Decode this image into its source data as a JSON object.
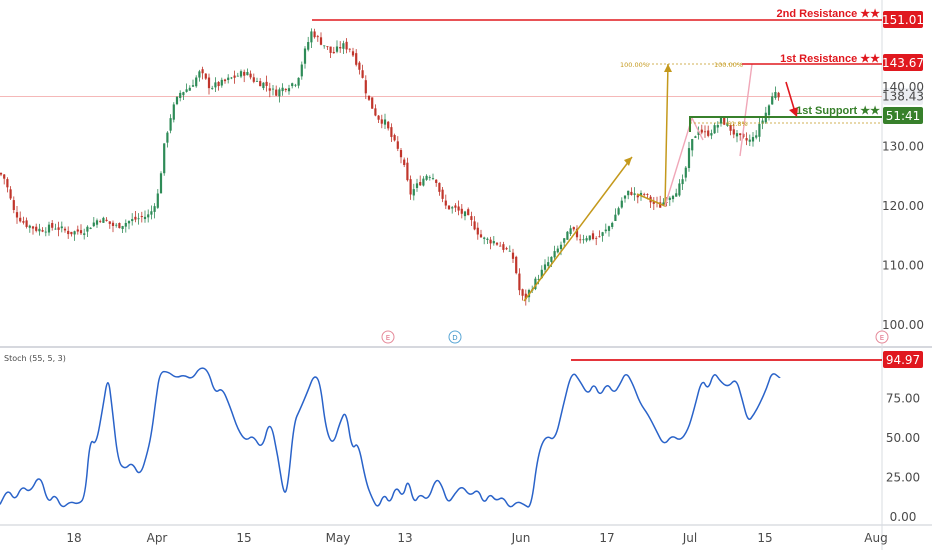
{
  "chart_data": [
    {
      "type": "candlestick",
      "ylim": [
        98,
        154
      ],
      "y_ticks": [
        "100.00",
        "110.00",
        "120.00",
        "130.00",
        "140.00"
      ],
      "x_ticks": [
        "18",
        "Apr",
        "15",
        "May",
        "13",
        "Jun",
        "17",
        "Jul",
        "15",
        "Aug"
      ],
      "close_path": [
        [
          0,
          125.5
        ],
        [
          5,
          124.5
        ],
        [
          14,
          119
        ],
        [
          25,
          117
        ],
        [
          38,
          116
        ],
        [
          55,
          116.5
        ],
        [
          70,
          115.5
        ],
        [
          85,
          116
        ],
        [
          100,
          118
        ],
        [
          115,
          116.5
        ],
        [
          130,
          117.5
        ],
        [
          150,
          118.5
        ],
        [
          158,
          122
        ],
        [
          165,
          131
        ],
        [
          172,
          136
        ],
        [
          180,
          139
        ],
        [
          190,
          140
        ],
        [
          200,
          142.5
        ],
        [
          210,
          140
        ],
        [
          220,
          140.5
        ],
        [
          232,
          141.5
        ],
        [
          245,
          142.5
        ],
        [
          255,
          141
        ],
        [
          265,
          140.5
        ],
        [
          275,
          139
        ],
        [
          285,
          140
        ],
        [
          297,
          141
        ],
        [
          305,
          146
        ],
        [
          312,
          149.5
        ],
        [
          318,
          148
        ],
        [
          325,
          147
        ],
        [
          332,
          145.5
        ],
        [
          342,
          147
        ],
        [
          350,
          146.5
        ],
        [
          360,
          143
        ],
        [
          368,
          138
        ],
        [
          377,
          135
        ],
        [
          385,
          134
        ],
        [
          393,
          131
        ],
        [
          402,
          128
        ],
        [
          410,
          122
        ],
        [
          420,
          124
        ],
        [
          428,
          125.5
        ],
        [
          436,
          124.5
        ],
        [
          444,
          120
        ],
        [
          455,
          119.5
        ],
        [
          465,
          118.5
        ],
        [
          473,
          117
        ],
        [
          482,
          114.5
        ],
        [
          495,
          114
        ],
        [
          507,
          112.5
        ],
        [
          514,
          111
        ],
        [
          519,
          106
        ],
        [
          524,
          104
        ],
        [
          530,
          106
        ],
        [
          538,
          108
        ],
        [
          546,
          110
        ],
        [
          555,
          112
        ],
        [
          563,
          114
        ],
        [
          571,
          116
        ],
        [
          580,
          114.5
        ],
        [
          588,
          115
        ],
        [
          597,
          114.5
        ],
        [
          607,
          116
        ],
        [
          614,
          118
        ],
        [
          622,
          121
        ],
        [
          630,
          122.5
        ],
        [
          637,
          121.5
        ],
        [
          645,
          122
        ],
        [
          652,
          120.5
        ],
        [
          660,
          120
        ],
        [
          668,
          121.5
        ],
        [
          675,
          122.5
        ],
        [
          683,
          124
        ],
        [
          690,
          130
        ],
        [
          698,
          133
        ],
        [
          706,
          132
        ],
        [
          714,
          133
        ],
        [
          722,
          134.5
        ],
        [
          730,
          133
        ],
        [
          738,
          131.5
        ],
        [
          745,
          131
        ],
        [
          752,
          131
        ],
        [
          760,
          133.5
        ],
        [
          768,
          136.5
        ],
        [
          775,
          139.5
        ],
        [
          781,
          138.4
        ]
      ],
      "levels": [
        {
          "name": "2nd Resistance ★★",
          "value": "151.01",
          "color": "#e0181f"
        },
        {
          "name": "1st Resistance ★★",
          "value": "143.67",
          "color": "#e0181f"
        },
        {
          "name": "1st Support ★★",
          "value": "51:41",
          "color": "#37802b"
        }
      ],
      "current_price": "138.43",
      "current_price_value": 138.43,
      "fib_labels": [
        "100.00%",
        "100.00%",
        "61.8%"
      ],
      "event_markers": [
        "E",
        "D",
        "E"
      ]
    },
    {
      "type": "line",
      "title": "Stoch (55, 5, 3)",
      "ylim": [
        0,
        100
      ],
      "y_ticks": [
        "0.00",
        "25.00",
        "50.00",
        "75.00"
      ],
      "level": {
        "value": "94.97",
        "color": "#e0181f"
      },
      "series": [
        [
          0,
          8
        ],
        [
          8,
          18
        ],
        [
          15,
          10
        ],
        [
          22,
          20
        ],
        [
          30,
          15
        ],
        [
          40,
          28
        ],
        [
          48,
          8
        ],
        [
          55,
          15
        ],
        [
          62,
          5
        ],
        [
          70,
          10
        ],
        [
          78,
          8
        ],
        [
          85,
          12
        ],
        [
          90,
          50
        ],
        [
          96,
          45
        ],
        [
          103,
          70
        ],
        [
          108,
          90
        ],
        [
          112,
          70
        ],
        [
          118,
          35
        ],
        [
          125,
          30
        ],
        [
          132,
          35
        ],
        [
          140,
          25
        ],
        [
          148,
          42
        ],
        [
          152,
          55
        ],
        [
          156,
          75
        ],
        [
          160,
          92
        ],
        [
          168,
          92
        ],
        [
          176,
          88
        ],
        [
          184,
          90
        ],
        [
          192,
          87
        ],
        [
          200,
          95
        ],
        [
          208,
          93
        ],
        [
          215,
          78
        ],
        [
          222,
          82
        ],
        [
          230,
          70
        ],
        [
          238,
          55
        ],
        [
          246,
          48
        ],
        [
          253,
          52
        ],
        [
          262,
          42
        ],
        [
          270,
          63
        ],
        [
          278,
          38
        ],
        [
          284,
          13
        ],
        [
          288,
          20
        ],
        [
          294,
          60
        ],
        [
          300,
          68
        ],
        [
          308,
          80
        ],
        [
          314,
          90
        ],
        [
          320,
          86
        ],
        [
          326,
          55
        ],
        [
          333,
          45
        ],
        [
          340,
          60
        ],
        [
          346,
          68
        ],
        [
          352,
          42
        ],
        [
          358,
          48
        ],
        [
          366,
          22
        ],
        [
          372,
          12
        ],
        [
          378,
          5
        ],
        [
          384,
          15
        ],
        [
          390,
          8
        ],
        [
          396,
          20
        ],
        [
          403,
          12
        ],
        [
          408,
          25
        ],
        [
          414,
          8
        ],
        [
          420,
          15
        ],
        [
          428,
          10
        ],
        [
          436,
          25
        ],
        [
          442,
          20
        ],
        [
          448,
          8
        ],
        [
          455,
          15
        ],
        [
          462,
          20
        ],
        [
          470,
          13
        ],
        [
          478,
          18
        ],
        [
          484,
          8
        ],
        [
          490,
          15
        ],
        [
          496,
          10
        ],
        [
          503,
          13
        ],
        [
          510,
          5
        ],
        [
          517,
          10
        ],
        [
          524,
          8
        ],
        [
          531,
          5
        ],
        [
          538,
          40
        ],
        [
          546,
          52
        ],
        [
          555,
          48
        ],
        [
          563,
          70
        ],
        [
          572,
          93
        ],
        [
          580,
          86
        ],
        [
          588,
          77
        ],
        [
          594,
          85
        ],
        [
          600,
          76
        ],
        [
          607,
          85
        ],
        [
          614,
          78
        ],
        [
          620,
          84
        ],
        [
          626,
          92
        ],
        [
          633,
          84
        ],
        [
          640,
          72
        ],
        [
          648,
          65
        ],
        [
          656,
          55
        ],
        [
          664,
          45
        ],
        [
          672,
          52
        ],
        [
          680,
          48
        ],
        [
          688,
          55
        ],
        [
          694,
          68
        ],
        [
          702,
          88
        ],
        [
          708,
          80
        ],
        [
          714,
          92
        ],
        [
          720,
          86
        ],
        [
          728,
          82
        ],
        [
          736,
          88
        ],
        [
          742,
          75
        ],
        [
          748,
          60
        ],
        [
          754,
          65
        ],
        [
          760,
          72
        ],
        [
          767,
          82
        ],
        [
          772,
          92
        ],
        [
          780,
          88
        ]
      ]
    }
  ]
}
